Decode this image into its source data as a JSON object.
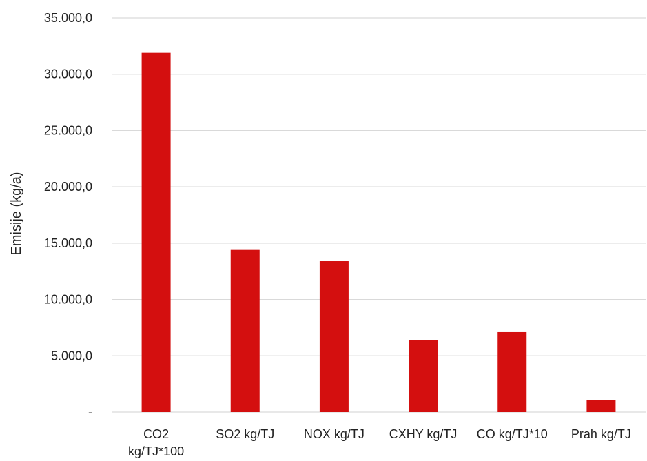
{
  "chart_data": {
    "type": "bar",
    "ylabel": "Emisije (kg/a)",
    "xlabel": "",
    "title": "",
    "ylim": [
      0,
      35000
    ],
    "yticks": [
      0,
      5000,
      10000,
      15000,
      20000,
      25000,
      30000,
      35000
    ],
    "ytick_labels": [
      "-",
      "5.000,0",
      "10.000,0",
      "15.000,0",
      "20.000,0",
      "25.000,0",
      "30.000,0",
      "35.000,0"
    ],
    "grid": true,
    "legend": "none",
    "bar_color": "#d40f0f",
    "categories": [
      [
        "CO2",
        "kg/TJ*100"
      ],
      [
        "SO2 kg/TJ"
      ],
      [
        "NOX kg/TJ"
      ],
      [
        "CXHY kg/TJ"
      ],
      [
        "CO kg/TJ*10"
      ],
      [
        "Prah kg/TJ"
      ]
    ],
    "values": [
      31900,
      14400,
      13400,
      6400,
      7100,
      1100
    ]
  }
}
